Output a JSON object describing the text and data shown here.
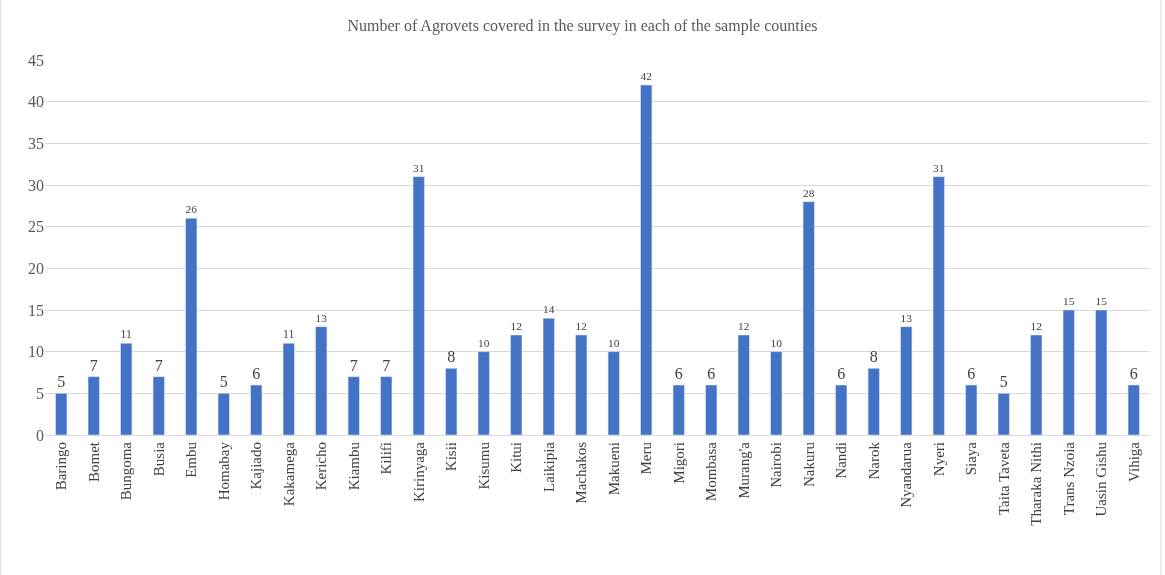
{
  "chart_data": {
    "type": "bar",
    "title": "Number of Agrovets covered in the survey in each of the sample counties",
    "categories": [
      "Baringo",
      "Bomet",
      "Bungoma",
      "Busia",
      "Embu",
      "Homabay",
      "Kajiado",
      "Kakamega",
      "Kericho",
      "Kiambu",
      "Kilifi",
      "Kirinyaga",
      "Kisii",
      "Kisumu",
      "Kitui",
      "Laikipia",
      "Machakos",
      "Makueni",
      "Meru",
      "Migori",
      "Mombasa",
      "Murang'a",
      "Nairobi",
      "Nakuru",
      "Nandi",
      "Narok",
      "Nyandarua",
      "Nyeri",
      "Siaya",
      "Taita Taveta",
      "Tharaka Nithi",
      "Trans Nzoia",
      "Uasin Gishu",
      "Vihiga"
    ],
    "values": [
      5,
      7,
      11,
      7,
      26,
      5,
      6,
      11,
      13,
      7,
      7,
      31,
      8,
      10,
      12,
      14,
      12,
      10,
      42,
      6,
      6,
      12,
      10,
      28,
      6,
      8,
      13,
      31,
      6,
      5,
      12,
      15,
      15,
      6
    ],
    "color": "#4472c4",
    "ylim": [
      0,
      45
    ],
    "yticks": [
      0,
      5,
      10,
      15,
      20,
      25,
      30,
      35,
      40,
      45
    ],
    "grid": "y",
    "data_labels": true,
    "legend": false
  }
}
